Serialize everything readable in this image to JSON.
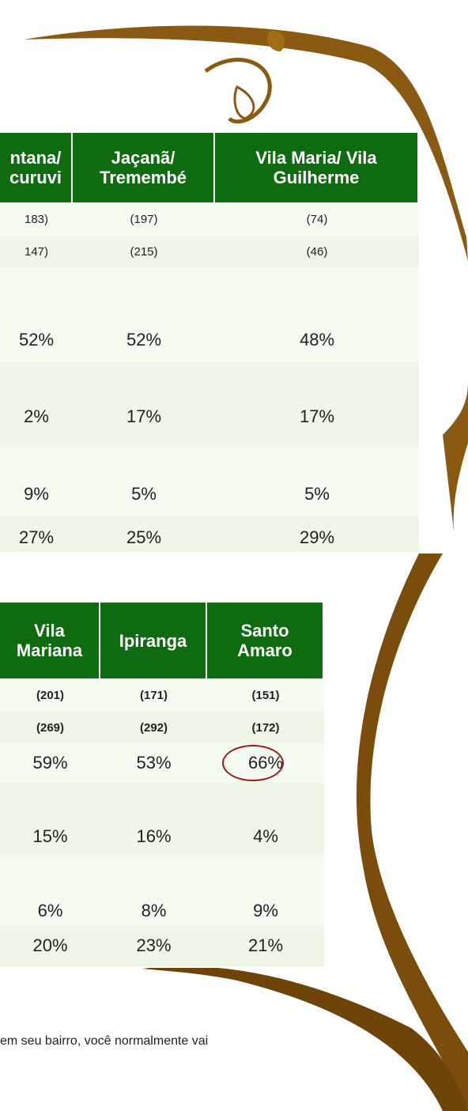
{
  "table1": {
    "header": [
      [
        "ntana/",
        "curuvi"
      ],
      [
        "Jaçanã/",
        "Tremembé"
      ],
      [
        "Vila Maria/ Vila",
        "Guilherme"
      ]
    ],
    "rows": [
      [
        "183)",
        "(197)",
        "(74)"
      ],
      [
        "147)",
        "(215)",
        "(46)"
      ],
      [
        "52%",
        "52%",
        "48%"
      ],
      [
        "2%",
        "17%",
        "17%"
      ],
      [
        "9%",
        "5%",
        "5%"
      ],
      [
        "27%",
        "25%",
        "29%"
      ]
    ]
  },
  "table2": {
    "header": [
      [
        "Vila",
        "Mariana"
      ],
      [
        "Ipiranga"
      ],
      [
        "Santo",
        "Amaro"
      ]
    ],
    "rows": [
      [
        "(201)",
        "(171)",
        "(151)"
      ],
      [
        "(269)",
        "(292)",
        "(172)"
      ],
      [
        "59%",
        "53%",
        "66%"
      ],
      [
        "15%",
        "16%",
        "4%"
      ],
      [
        "6%",
        "8%",
        "9%"
      ],
      [
        "20%",
        "23%",
        "21%"
      ]
    ]
  },
  "footer_text": "em seu bairro, você normalmente vai"
}
